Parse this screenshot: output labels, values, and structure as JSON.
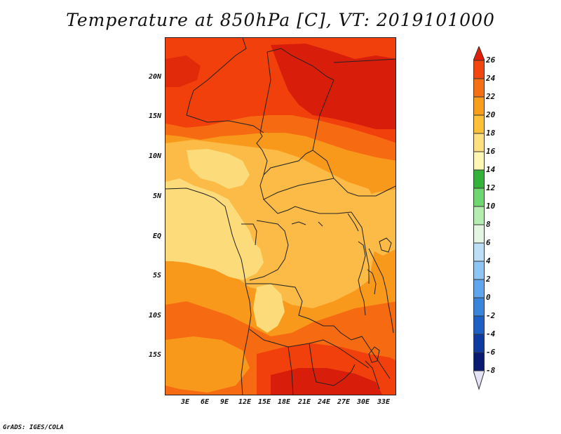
{
  "title": "Temperature at 850hPa [C], VT: 2019101000",
  "footer": "GrADS: IGES/COLA",
  "map": {
    "lat_labels": [
      "20N",
      "15N",
      "10N",
      "5N",
      "EQ",
      "5S",
      "10S",
      "15S"
    ],
    "lon_labels": [
      "3E",
      "6E",
      "9E",
      "12E",
      "15E",
      "18E",
      "21E",
      "24E",
      "27E",
      "30E",
      "33E"
    ]
  },
  "colorbar": {
    "labels": [
      "26",
      "24",
      "22",
      "20",
      "18",
      "16",
      "14",
      "12",
      "10",
      "8",
      "6",
      "4",
      "2",
      "0",
      "-2",
      "-4",
      "-6",
      "-8"
    ],
    "colors": [
      "#e11f08",
      "#f2460e",
      "#f66f14",
      "#f99d1d",
      "#fcc039",
      "#fde080",
      "#fef7b3",
      "#35b23a",
      "#70d670",
      "#b5ecb0",
      "#e2f6e2",
      "#bcdff8",
      "#8ec5f4",
      "#5fa6ec",
      "#3a85dc",
      "#1d5fc4",
      "#0f3aa0",
      "#0a1a70",
      "#1c0a5a",
      "#e4e2f5"
    ]
  },
  "legend_colors": {
    "t25": "#d81e0a",
    "t23": "#f2400c",
    "t21": "#f66a12",
    "t19": "#f9991c",
    "t17": "#fbbb46",
    "t15": "#fcdb7a"
  }
}
